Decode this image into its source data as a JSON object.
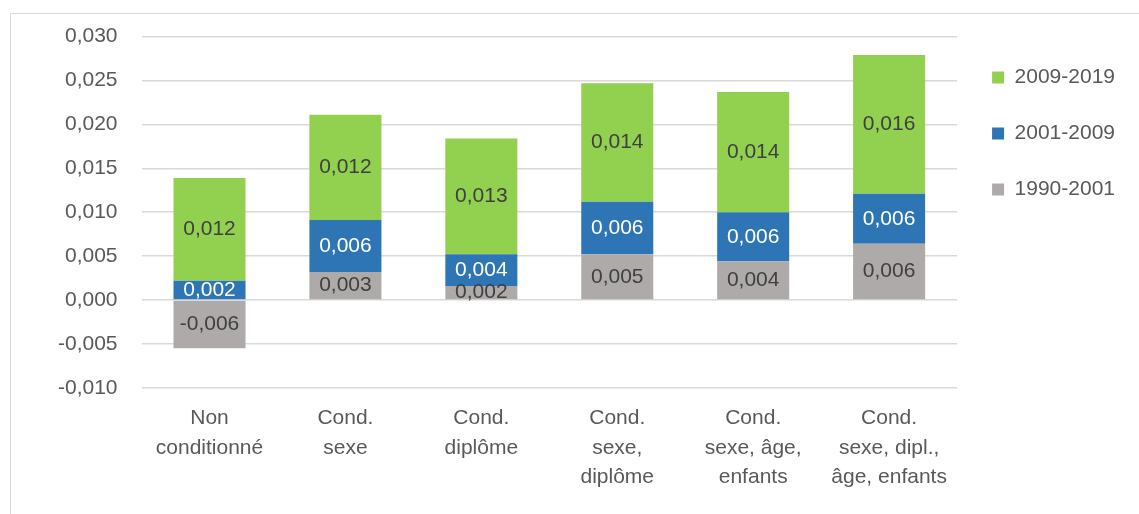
{
  "chart_data": {
    "type": "bar",
    "stacked": true,
    "categories": [
      "Non\nconditionné",
      "Cond.\nsexe",
      "Cond.\ndiplôme",
      "Cond.\nsexe,\ndiplôme",
      "Cond.\nsexe, âge,\nenfants",
      "Cond.\nsexe, dipl.,\nâge, enfants"
    ],
    "series": [
      {
        "name": "1990-2001",
        "color": "#aeaaaa",
        "values": [
          -0.0055,
          0.0032,
          0.0016,
          0.0052,
          0.0044,
          0.0064
        ],
        "value_labels": [
          "-0,006",
          "0,003",
          "0,002",
          "0,005",
          "0,004",
          "0,006"
        ]
      },
      {
        "name": "2001-2009",
        "color": "#2e75b6",
        "values": [
          0.0022,
          0.0059,
          0.0036,
          0.006,
          0.0056,
          0.0057
        ],
        "value_labels": [
          "0,002",
          "0,006",
          "0,004",
          "0,006",
          "0,006",
          "0,006"
        ]
      },
      {
        "name": "2009-2019",
        "color": "#92d050",
        "values": [
          0.0117,
          0.012,
          0.0132,
          0.0135,
          0.0137,
          0.0158
        ],
        "value_labels": [
          "0,012",
          "0,012",
          "0,013",
          "0,014",
          "0,014",
          "0,016"
        ]
      }
    ],
    "ylim": [
      -0.01,
      0.03
    ],
    "yticks": [
      {
        "value": -0.01,
        "label": "-0,010"
      },
      {
        "value": -0.005,
        "label": "-0,005"
      },
      {
        "value": 0,
        "label": "0,000"
      },
      {
        "value": 0.005,
        "label": "0,005"
      },
      {
        "value": 0.01,
        "label": "0,010"
      },
      {
        "value": 0.015,
        "label": "0,015"
      },
      {
        "value": 0.02,
        "label": "0,020"
      },
      {
        "value": 0.025,
        "label": "0,025"
      },
      {
        "value": 0.03,
        "label": "0,030"
      }
    ],
    "grid": "y",
    "legend": "top right"
  }
}
